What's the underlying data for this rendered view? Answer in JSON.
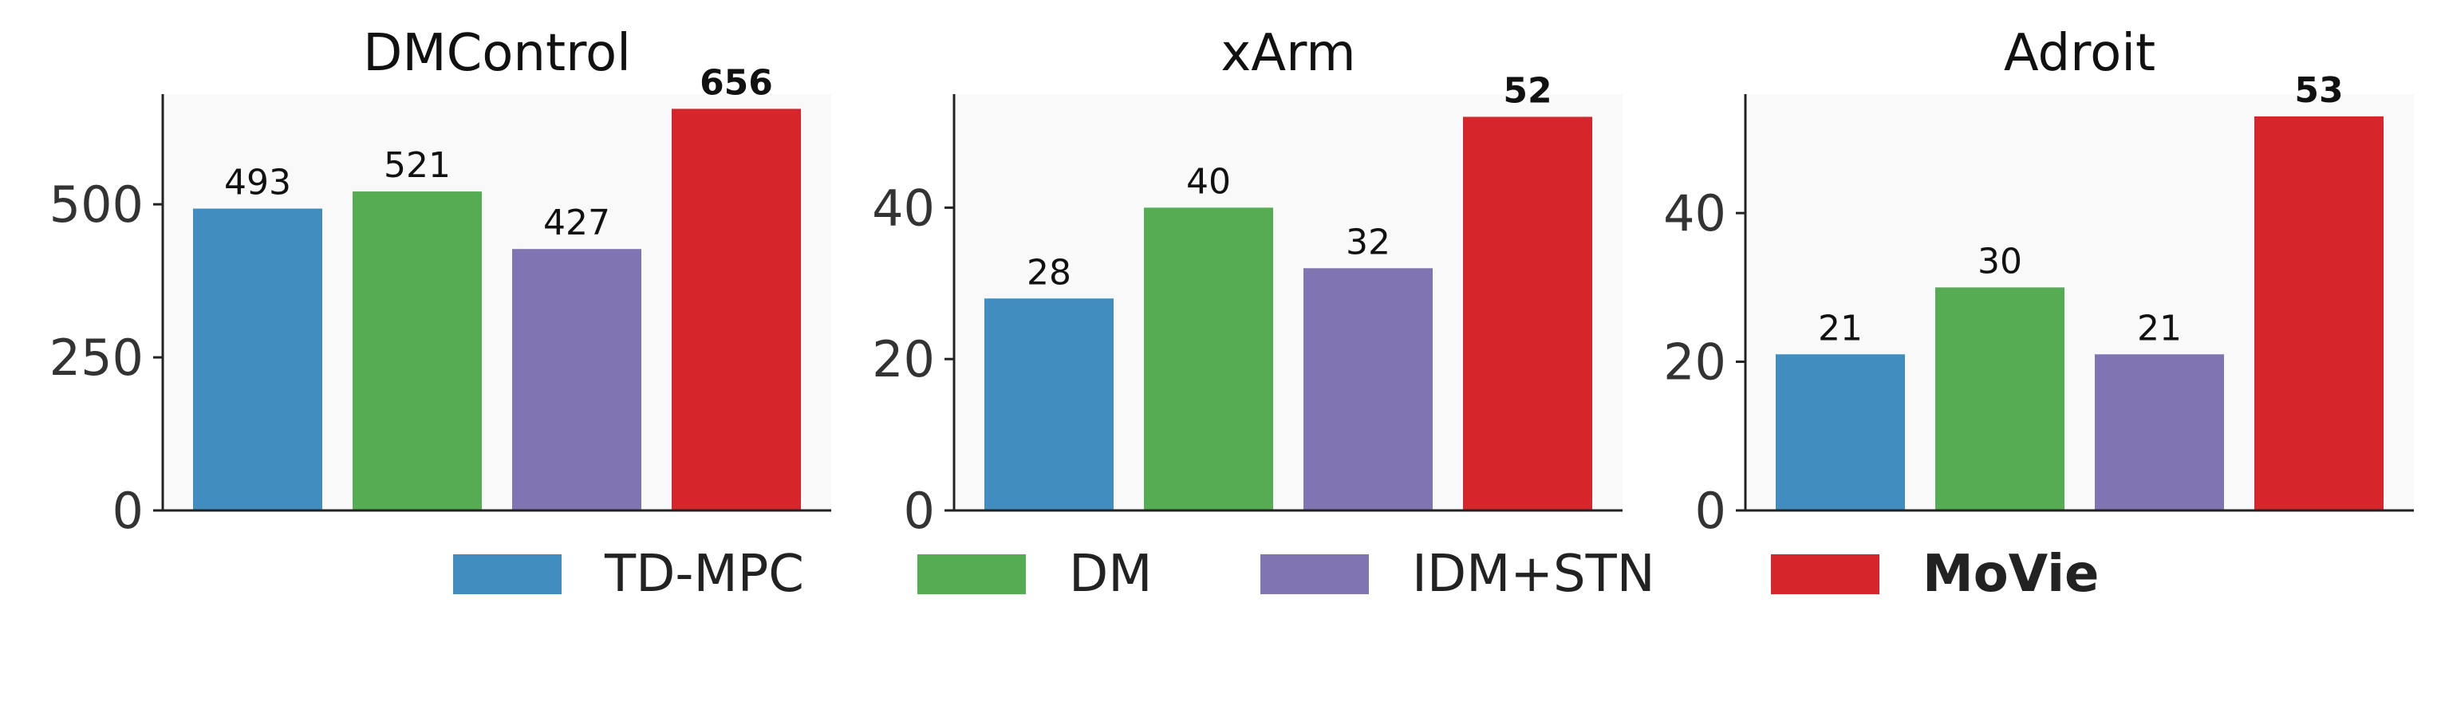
{
  "legend": {
    "items": [
      {
        "label": "TD-MPC",
        "color": "#428dc0",
        "bold": false
      },
      {
        "label": "DM",
        "color": "#55ac53",
        "bold": false
      },
      {
        "label": "IDM+STN",
        "color": "#8174b3",
        "bold": false
      },
      {
        "label": "MoVie",
        "color": "#d7262b",
        "bold": true
      }
    ]
  },
  "chart_data": [
    {
      "type": "bar",
      "title": "DMControl",
      "categories": [
        "TD-MPC",
        "DM",
        "IDM+STN",
        "MoVie"
      ],
      "values": [
        493,
        521,
        427,
        656
      ],
      "value_labels": [
        "493",
        "521",
        "427",
        "656"
      ],
      "yticks": [
        0,
        250,
        500
      ],
      "ylim": [
        0,
        680
      ],
      "colors": [
        "#428dc0",
        "#55ac53",
        "#8174b3",
        "#d7262b"
      ],
      "bold_index": 3,
      "grid": false,
      "background": "#f9f9f9"
    },
    {
      "type": "bar",
      "title": "xArm",
      "categories": [
        "TD-MPC",
        "DM",
        "IDM+STN",
        "MoVie"
      ],
      "values": [
        28,
        40,
        32,
        52
      ],
      "value_labels": [
        "28",
        "40",
        "32",
        "52"
      ],
      "yticks": [
        0,
        20,
        40
      ],
      "ylim": [
        0,
        55
      ],
      "colors": [
        "#428dc0",
        "#55ac53",
        "#8174b3",
        "#d7262b"
      ],
      "bold_index": 3,
      "grid": false,
      "background": "#f9f9f9"
    },
    {
      "type": "bar",
      "title": "Adroit",
      "categories": [
        "TD-MPC",
        "DM",
        "IDM+STN",
        "MoVie"
      ],
      "values": [
        21,
        30,
        21,
        53
      ],
      "value_labels": [
        "21",
        "30",
        "21",
        "53"
      ],
      "yticks": [
        0,
        20,
        40
      ],
      "ylim": [
        0,
        56
      ],
      "colors": [
        "#428dc0",
        "#55ac53",
        "#8174b3",
        "#d7262b"
      ],
      "bold_index": 3,
      "grid": false,
      "background": "#f9f9f9"
    }
  ]
}
